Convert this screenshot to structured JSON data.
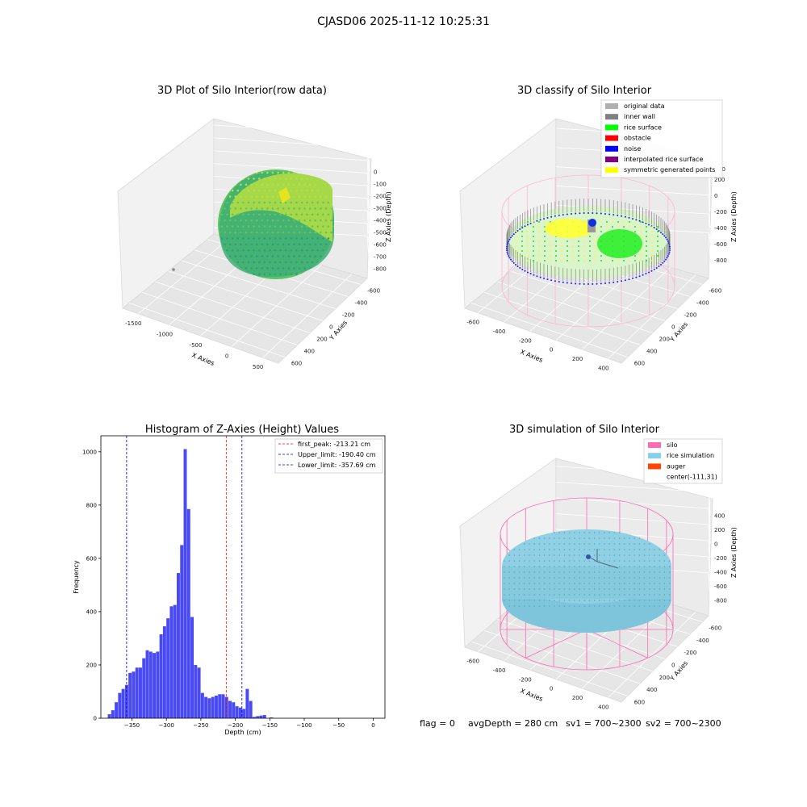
{
  "suptitle": "CJASD06 2025-11-12 10:25:31",
  "status_line": {
    "flag": "flag = 0",
    "avg_depth": "avgDepth = 280 cm",
    "sv1": "sv1 = 700~2300",
    "sv2": "sv2 = 700~2300"
  },
  "chart_data": [
    {
      "type": "scatter",
      "projection": "3d",
      "title": "3D Plot of Silo Interior(row data)",
      "xlabel": "X Axies",
      "ylabel": "Y Axies",
      "zlabel": "Z Axies (Depth)",
      "x_ticks": [
        "-1500",
        "-1000",
        "-500",
        "0",
        "500"
      ],
      "y_ticks": [
        "-600",
        "-400",
        "-200",
        "0",
        "200",
        "400",
        "600"
      ],
      "z_ticks": [
        "0",
        "-100",
        "-200",
        "-300",
        "-400",
        "-500",
        "-600",
        "-700",
        "-800"
      ],
      "colormap": "viridis"
    },
    {
      "type": "scatter",
      "projection": "3d",
      "title": "3D classify of Silo Interior",
      "xlabel": "X Axies",
      "ylabel": "Y Axies",
      "zlabel": "Z Axies (Depth)",
      "x_ticks": [
        "-600",
        "-400",
        "-200",
        "0",
        "200",
        "400"
      ],
      "y_ticks": [
        "-600",
        "-400",
        "-200",
        "0",
        "200",
        "400",
        "600"
      ],
      "z_ticks": [
        "200",
        "0",
        "-200",
        "-400",
        "-600",
        "-800"
      ],
      "z_top_partial": "00",
      "legend_position": "upper-right",
      "legend": [
        {
          "label": "original data",
          "color": "#b0b0b0"
        },
        {
          "label": "inner wall",
          "color": "#808080"
        },
        {
          "label": "rice surface",
          "color": "#00ff00"
        },
        {
          "label": "obstacle",
          "color": "#ff0000"
        },
        {
          "label": "noise",
          "color": "#0000ff"
        },
        {
          "label": "interpolated rice surface",
          "color": "#800080"
        },
        {
          "label": "symmetric generated points",
          "color": "#ffff00"
        }
      ]
    },
    {
      "type": "bar",
      "subtype": "histogram",
      "title": "Histogram of Z-Axies (Height) Values",
      "xlabel": "Depth (cm)",
      "ylabel": "Frequency",
      "xlim": [
        -395,
        17
      ],
      "ylim": [
        0,
        1060
      ],
      "x_ticks": [
        -350,
        -300,
        -250,
        -200,
        -150,
        -100,
        -50,
        0
      ],
      "y_ticks": [
        0,
        200,
        400,
        600,
        800,
        1000
      ],
      "bar_color": "#4a4af5",
      "bin_start": -385,
      "bin_width": 5,
      "values": [
        15,
        30,
        60,
        95,
        110,
        125,
        170,
        175,
        190,
        190,
        225,
        255,
        250,
        245,
        250,
        315,
        345,
        375,
        420,
        425,
        545,
        650,
        1010,
        785,
        380,
        200,
        190,
        95,
        80,
        75,
        80,
        85,
        90,
        90,
        80,
        65,
        60,
        45,
        40,
        35,
        110,
        65,
        5,
        8,
        10,
        12,
        0,
        3
      ],
      "vlines": [
        {
          "x": -213.21,
          "color": "#ff0000",
          "label": "first_peak: -213.21 cm"
        },
        {
          "x": -190.4,
          "color": "#0000cc",
          "label": "Upper_limit: -190.40 cm"
        },
        {
          "x": -357.69,
          "color": "#0000cc",
          "label": "Lower_limit: -357.69 cm"
        }
      ],
      "legend_position": "upper-right"
    },
    {
      "type": "scatter",
      "projection": "3d",
      "title": "3D simulation of Silo Interior",
      "xlabel": "X Axies",
      "ylabel": "Y Axies",
      "zlabel": "Z Axies (Depth)",
      "x_ticks": [
        "-600",
        "-400",
        "-200",
        "0",
        "200",
        "400"
      ],
      "y_ticks": [
        "-600",
        "-400",
        "-200",
        "0",
        "200",
        "400",
        "600"
      ],
      "z_ticks": [
        "400",
        "200",
        "0",
        "-200",
        "-400",
        "-600",
        "-800"
      ],
      "legend_position": "upper-right",
      "legend": [
        {
          "label": "silo",
          "color": "#ff69b4"
        },
        {
          "label": "rice simulation",
          "color": "#87ceeb"
        },
        {
          "label": "auger",
          "color": "#ff4500"
        },
        {
          "label": "center(-111,31)",
          "color": ""
        }
      ]
    }
  ]
}
